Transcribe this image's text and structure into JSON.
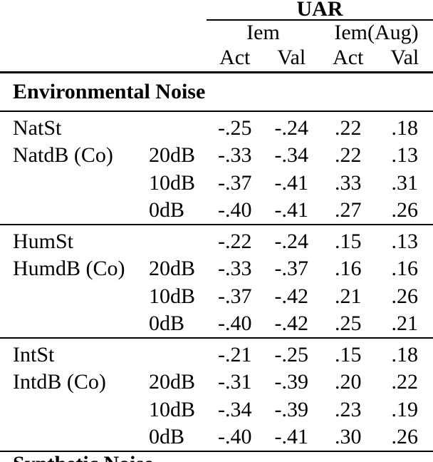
{
  "colors": {
    "background": "#ffffff",
    "text": "#000000",
    "rule": "#000000"
  },
  "header": {
    "title": "UAR",
    "groups": [
      "Iem",
      "Iem(Aug)"
    ],
    "columns": [
      "Act",
      "Val",
      "Act",
      "Val"
    ]
  },
  "sections": {
    "environmental": {
      "title": "Environmental Noise",
      "groups": [
        {
          "rows": [
            {
              "label": "NatSt",
              "sub": "",
              "values": [
                "-.25",
                "-.24",
                ".22",
                ".18"
              ]
            },
            {
              "label": "NatdB (Co)",
              "sub": "20dB",
              "values": [
                "-.33",
                "-.34",
                ".22",
                ".13"
              ]
            },
            {
              "label": "",
              "sub": "10dB",
              "values": [
                "-.37",
                "-.41",
                ".33",
                ".31"
              ]
            },
            {
              "label": "",
              "sub": "0dB",
              "values": [
                "-.40",
                "-.41",
                ".27",
                ".26"
              ]
            }
          ]
        },
        {
          "rows": [
            {
              "label": "HumSt",
              "sub": "",
              "values": [
                "-.22",
                "-.24",
                ".15",
                ".13"
              ]
            },
            {
              "label": "HumdB (Co)",
              "sub": "20dB",
              "values": [
                "-.33",
                "-.37",
                ".16",
                ".16"
              ]
            },
            {
              "label": "",
              "sub": "10dB",
              "values": [
                "-.37",
                "-.42",
                ".21",
                ".26"
              ]
            },
            {
              "label": "",
              "sub": "0dB",
              "values": [
                "-.40",
                "-.42",
                ".25",
                ".21"
              ]
            }
          ]
        },
        {
          "rows": [
            {
              "label": "IntSt",
              "sub": "",
              "values": [
                "-.21",
                "-.25",
                ".15",
                ".18"
              ]
            },
            {
              "label": "IntdB (Co)",
              "sub": "20dB",
              "values": [
                "-.31",
                "-.39",
                ".20",
                ".22"
              ]
            },
            {
              "label": "",
              "sub": "10dB",
              "values": [
                "-.34",
                "-.39",
                ".23",
                ".19"
              ]
            },
            {
              "label": "",
              "sub": "0dB",
              "values": [
                "-.40",
                "-.41",
                ".30",
                ".26"
              ]
            }
          ]
        }
      ]
    },
    "synthetic": {
      "title": "Synthetic Noise"
    }
  }
}
